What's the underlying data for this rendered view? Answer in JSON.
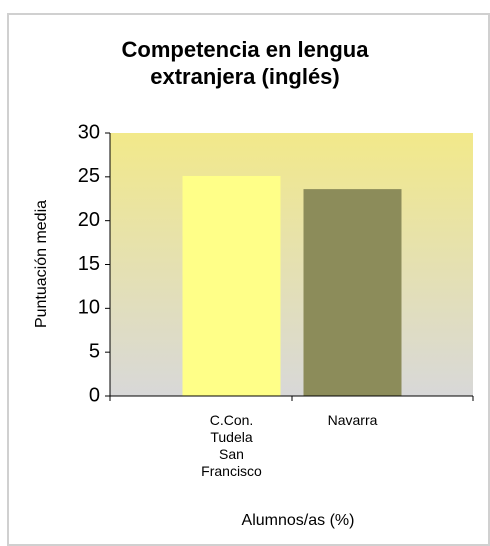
{
  "chart_data": {
    "type": "bar",
    "title": "Competencia en lengua extranjera (inglés)",
    "y_label": "Puntuación media",
    "x_label": "Alumnos/as (%)",
    "categories": [
      "C.Con. Tudela San Francisco",
      "Navarra"
    ],
    "values": [
      25.1,
      23.6
    ],
    "colors": [
      "#ffff88",
      "#8c8c5a"
    ],
    "ylim": [
      0,
      30
    ],
    "yticks": [
      0,
      5,
      10,
      15,
      20,
      25,
      30
    ],
    "grid": false
  }
}
